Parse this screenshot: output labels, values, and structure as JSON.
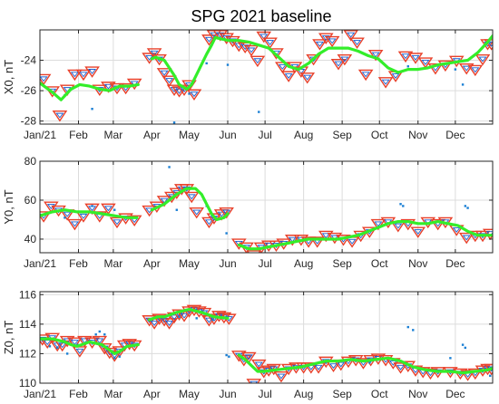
{
  "title": "SPG 2021 baseline",
  "colors": {
    "triangle_outer": "#e8402a",
    "triangle_inner": "#1a5fd0",
    "points": "#1a7fd4",
    "fit_line": "#33ee2a",
    "axis": "#262626",
    "grid": "#dcdcdc"
  },
  "chart_data": [
    {
      "type": "scatter",
      "name": "X0",
      "ylabel": "X0, nT",
      "xticks": [
        "Jan/21",
        "Feb",
        "Mar",
        "Apr",
        "May",
        "Jun",
        "Jul",
        "Aug",
        "Sep",
        "Oct",
        "Nov",
        "Dec"
      ],
      "xlim": [
        0,
        364
      ],
      "ylim": [
        -28.2,
        -22
      ],
      "yticks": [
        -28,
        -26,
        -24
      ],
      "grid": true,
      "fit_line": {
        "x": [
          0,
          10,
          17,
          25,
          32,
          40,
          48,
          56,
          64,
          72,
          79,
          80,
          90,
          93,
          100,
          108,
          112,
          118,
          122,
          128,
          134,
          138,
          141,
          146,
          152,
          160,
          168,
          176,
          184,
          192,
          200,
          208,
          216,
          224,
          232,
          240,
          248,
          256,
          264,
          272,
          280,
          288,
          296,
          304,
          312,
          320,
          328,
          336,
          344,
          352,
          360,
          364
        ],
        "y": [
          -25.5,
          -26.1,
          -26.6,
          -25.9,
          -25.6,
          -25.7,
          -25.9,
          -26.0,
          -25.7,
          -25.7,
          -25.6,
          null,
          -23.9,
          -23.8,
          -24.0,
          -25.0,
          -25.6,
          -25.9,
          -25.6,
          -24.6,
          -23.6,
          -23.0,
          -22.5,
          -22.6,
          -22.7,
          -22.7,
          -22.8,
          -23.0,
          -23.2,
          -23.8,
          -24.4,
          -24.6,
          -24.2,
          -23.6,
          -23.2,
          -23.2,
          -23.2,
          -23.4,
          -23.7,
          -23.9,
          -24.5,
          -24.8,
          -24.6,
          -24.6,
          -24.5,
          -24.3,
          -24.2,
          -24.1,
          -24.0,
          -23.5,
          -22.8,
          -22.4
        ]
      },
      "triangles": {
        "x": [
          3,
          10,
          16,
          22,
          28,
          35,
          42,
          48,
          55,
          62,
          69,
          76,
          88,
          92,
          96,
          100,
          104,
          108,
          112,
          116,
          120,
          124,
          136,
          140,
          145,
          150,
          155,
          160,
          165,
          170,
          175,
          180,
          185,
          190,
          195,
          200,
          205,
          210,
          215,
          220,
          225,
          230,
          235,
          240,
          245,
          250,
          255,
          262,
          270,
          278,
          286,
          294,
          302,
          310,
          318,
          326,
          335,
          343,
          350,
          356,
          360,
          363
        ],
        "y": [
          -25.2,
          -26.0,
          -27.6,
          -25.9,
          -24.9,
          -24.9,
          -24.7,
          -25.9,
          -25.7,
          -25.8,
          -25.8,
          -25.5,
          -23.8,
          -23.5,
          -23.9,
          -24.8,
          -25.3,
          -25.9,
          -26.0,
          -25.9,
          -25.6,
          -26.2,
          -22.6,
          -22.3,
          -22.3,
          -22.5,
          -22.7,
          -23.0,
          -23.1,
          -23.3,
          -24.0,
          -22.4,
          -22.8,
          -23.5,
          -24.4,
          -25.0,
          -24.4,
          -24.7,
          -25.1,
          -23.9,
          -22.9,
          -22.5,
          -22.7,
          -24.2,
          -23.9,
          -22.3,
          -22.8,
          -24.9,
          -23.6,
          -25.4,
          -25.0,
          -23.7,
          -23.8,
          -24.1,
          -24.5,
          -24.3,
          -24.0,
          -24.5,
          -24.6,
          -23.9,
          -22.9,
          -22.9
        ]
      },
      "points": {
        "x": [
          20,
          42,
          108,
          120,
          134,
          151,
          176,
          296,
          334,
          340
        ],
        "y": [
          -26.3,
          -27.2,
          -28.1,
          -26.2,
          -24.2,
          -24.3,
          -27.4,
          -24.4,
          -24.6,
          -25.6
        ]
      }
    },
    {
      "type": "scatter",
      "name": "Y0",
      "ylabel": "Y0, nT",
      "xticks": [
        "Jan/21",
        "Feb",
        "Mar",
        "Apr",
        "May",
        "Jun",
        "Jul",
        "Aug",
        "Sep",
        "Oct",
        "Nov",
        "Dec"
      ],
      "xlim": [
        0,
        364
      ],
      "ylim": [
        33,
        80
      ],
      "yticks": [
        40,
        60,
        80
      ],
      "grid": true,
      "fit_line": {
        "x": [
          0,
          10,
          20,
          30,
          40,
          50,
          60,
          70,
          78,
          79,
          90,
          100,
          110,
          118,
          125,
          130,
          134,
          138,
          142,
          148,
          151,
          152,
          160,
          168,
          176,
          184,
          192,
          200,
          208,
          216,
          224,
          232,
          240,
          248,
          256,
          264,
          272,
          280,
          288,
          296,
          304,
          312,
          320,
          328,
          336,
          344,
          352,
          360,
          364
        ],
        "y": [
          52,
          54,
          55,
          54,
          54,
          53,
          52,
          51,
          51,
          null,
          55,
          58,
          63,
          66,
          66,
          63,
          58,
          53,
          50,
          51,
          53,
          null,
          37,
          35,
          35,
          36,
          37,
          38,
          39,
          40,
          40,
          40,
          40,
          41,
          42,
          44,
          46,
          48,
          49,
          49,
          48,
          48,
          49,
          48,
          47,
          44,
          42,
          42,
          42
        ]
      },
      "triangles": {
        "x": [
          3,
          9,
          15,
          22,
          28,
          35,
          42,
          48,
          55,
          62,
          69,
          76,
          88,
          94,
          100,
          106,
          110,
          114,
          118,
          122,
          126,
          136,
          140,
          146,
          150,
          160,
          166,
          172,
          178,
          184,
          190,
          196,
          203,
          210,
          216,
          223,
          230,
          237,
          244,
          251,
          258,
          265,
          272,
          280,
          288,
          296,
          304,
          312,
          320,
          326,
          335,
          343,
          350,
          356,
          362
        ],
        "y": [
          52,
          57,
          55,
          53,
          48,
          52,
          56,
          52,
          56,
          49,
          51,
          50,
          55,
          57,
          60,
          62,
          64,
          66,
          66,
          62,
          54,
          49,
          51,
          53,
          54,
          38,
          36,
          32,
          36,
          37,
          37,
          38,
          40,
          40,
          39,
          39,
          42,
          41,
          40,
          39,
          42,
          44,
          48,
          49,
          47,
          48,
          44,
          49,
          48,
          49,
          45,
          41,
          42,
          42,
          43
        ]
      },
      "points": {
        "x": [
          20,
          42,
          60,
          104,
          110,
          120,
          134,
          150,
          290,
          292,
          342,
          344
        ],
        "y": [
          51,
          57,
          55,
          77,
          55,
          66,
          57,
          43,
          58,
          57,
          57,
          56
        ]
      }
    },
    {
      "type": "scatter",
      "name": "Z0",
      "ylabel": "Z0, nT",
      "xticks": [
        "Jan/21",
        "Feb",
        "Mar",
        "Apr",
        "May",
        "Jun",
        "Jul",
        "Aug",
        "Sep",
        "Oct",
        "Nov",
        "Dec"
      ],
      "xlim": [
        0,
        364
      ],
      "ylim": [
        110,
        116.2
      ],
      "yticks": [
        110,
        112,
        114,
        116
      ],
      "grid": true,
      "fit_line": {
        "x": [
          0,
          10,
          20,
          25,
          30,
          40,
          50,
          55,
          60,
          65,
          70,
          79,
          80,
          88,
          95,
          100,
          110,
          120,
          130,
          140,
          151,
          152,
          160,
          165,
          170,
          175,
          180,
          190,
          200,
          210,
          220,
          230,
          240,
          250,
          260,
          270,
          280,
          290,
          300,
          310,
          320,
          330,
          340,
          350,
          360,
          364
        ],
        "y": [
          113.0,
          113.0,
          112.8,
          112.6,
          112.5,
          112.8,
          112.6,
          112.3,
          112.0,
          112.2,
          112.5,
          112.6,
          null,
          114.3,
          114.5,
          114.5,
          114.8,
          115.0,
          114.8,
          114.5,
          114.4,
          null,
          111.9,
          111.6,
          111.2,
          110.8,
          110.8,
          110.9,
          111.0,
          111.1,
          111.3,
          111.5,
          111.5,
          111.6,
          111.5,
          111.6,
          111.7,
          111.5,
          111.1,
          110.9,
          110.8,
          110.8,
          110.7,
          110.8,
          110.9,
          111.0
        ]
      },
      "triangles": {
        "x": [
          2,
          6,
          10,
          14,
          18,
          22,
          28,
          32,
          36,
          42,
          48,
          52,
          56,
          60,
          64,
          68,
          72,
          76,
          88,
          92,
          96,
          100,
          104,
          108,
          112,
          116,
          120,
          124,
          128,
          132,
          136,
          140,
          144,
          148,
          152,
          160,
          164,
          168,
          172,
          176,
          180,
          184,
          188,
          194,
          200,
          206,
          212,
          218,
          224,
          230,
          236,
          242,
          248,
          254,
          260,
          266,
          272,
          278,
          284,
          290,
          296,
          302,
          308,
          314,
          320,
          330,
          338,
          344,
          350,
          356,
          360,
          363
        ],
        "y": [
          113.0,
          112.8,
          113.1,
          112.6,
          112.6,
          112.9,
          112.8,
          112.2,
          112.9,
          112.8,
          112.9,
          112.4,
          112.1,
          111.9,
          112.2,
          112.6,
          112.7,
          112.6,
          114.3,
          114.1,
          114.4,
          114.3,
          114.1,
          114.5,
          114.7,
          114.6,
          114.9,
          115.0,
          114.9,
          114.8,
          114.3,
          114.4,
          114.6,
          114.5,
          114.4,
          111.9,
          111.6,
          111.8,
          110.0,
          111.3,
          110.8,
          110.9,
          111.0,
          110.5,
          111.0,
          111.1,
          111.1,
          111.1,
          111.1,
          111.5,
          111.2,
          111.3,
          111.5,
          111.6,
          111.4,
          111.6,
          111.7,
          111.6,
          111.4,
          111.1,
          111.2,
          110.9,
          110.8,
          110.7,
          110.8,
          110.8,
          110.7,
          110.6,
          110.7,
          110.9,
          111.0,
          111.0
        ]
      },
      "points": {
        "x": [
          8,
          14,
          22,
          30,
          45,
          48,
          52,
          60,
          64,
          100,
          112,
          126,
          139,
          150,
          152,
          168,
          265,
          296,
          300,
          330,
          340,
          342,
          362
        ],
        "y": [
          112.5,
          112.4,
          112.0,
          112.6,
          113.3,
          113.5,
          113.3,
          111.7,
          111.8,
          114.4,
          114.5,
          114.4,
          114.3,
          111.9,
          111.8,
          111.4,
          111.4,
          113.8,
          113.6,
          111.7,
          112.6,
          112.4,
          110.5
        ]
      }
    }
  ]
}
